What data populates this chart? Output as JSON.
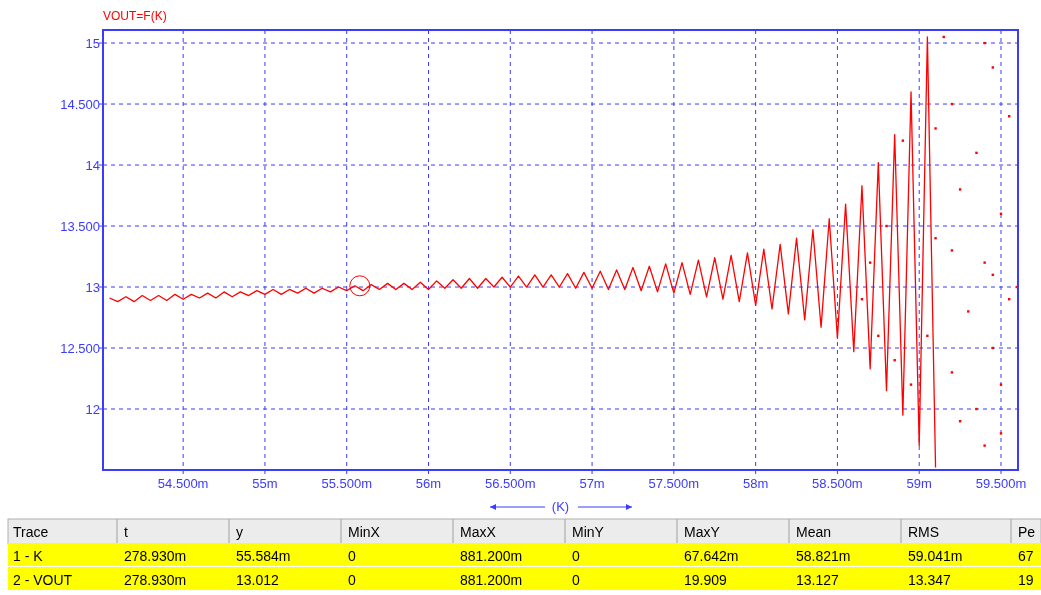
{
  "chart_data": {
    "type": "line",
    "title": "VOUT=F(K)",
    "xlabel": "(K)",
    "xlim": [
      54.01,
      59.604
    ],
    "ylim": [
      11.5,
      15.107
    ],
    "xticks": [
      {
        "value": 54.5,
        "label": "54.500m"
      },
      {
        "value": 55,
        "label": "55m"
      },
      {
        "value": 55.5,
        "label": "55.500m"
      },
      {
        "value": 56,
        "label": "56m"
      },
      {
        "value": 56.5,
        "label": "56.500m"
      },
      {
        "value": 57,
        "label": "57m"
      },
      {
        "value": 57.5,
        "label": "57.500m"
      },
      {
        "value": 58,
        "label": "58m"
      },
      {
        "value": 58.5,
        "label": "58.500m"
      },
      {
        "value": 59,
        "label": "59m"
      },
      {
        "value": 59.5,
        "label": "59.500m"
      }
    ],
    "yticks": [
      12,
      {
        "value": 12.5,
        "label": "12.500"
      },
      13,
      {
        "value": 13.5,
        "label": "13.500"
      },
      14,
      {
        "value": 14.5,
        "label": "14.500"
      },
      15
    ],
    "grid": true,
    "series": [
      {
        "color": "#ff0000",
        "marker": "none",
        "x": [
          54.05,
          54.1,
          54.15,
          54.2,
          54.25,
          54.3,
          54.35,
          54.4,
          54.45,
          54.5,
          54.55,
          54.6,
          54.65,
          54.7,
          54.75,
          54.8,
          54.85,
          54.9,
          54.95,
          55,
          55.05,
          55.1,
          55.15,
          55.2,
          55.25,
          55.3,
          55.35,
          55.4,
          55.45,
          55.5,
          55.55,
          55.6,
          55.65,
          55.7,
          55.75,
          55.8,
          55.85,
          55.9,
          55.95,
          56,
          56.05,
          56.1,
          56.15,
          56.2,
          56.25,
          56.3,
          56.35,
          56.4,
          56.45,
          56.5,
          56.55,
          56.6,
          56.65,
          56.7,
          56.75,
          56.8,
          56.85,
          56.9,
          56.95,
          57,
          57.05,
          57.1,
          57.15,
          57.2,
          57.25,
          57.3,
          57.35,
          57.4,
          57.45,
          57.5,
          57.55,
          57.6,
          57.65,
          57.7,
          57.75,
          57.8,
          57.85,
          57.9,
          57.95,
          58,
          58.05,
          58.1,
          58.15,
          58.2,
          58.25,
          58.3,
          58.35,
          58.4,
          58.45,
          58.5,
          58.55,
          58.6,
          58.65,
          58.7,
          58.75,
          58.8,
          58.85,
          58.9,
          58.95,
          59,
          59.05,
          59.1
        ],
        "values": [
          12.91,
          12.88,
          12.92,
          12.88,
          12.93,
          12.89,
          12.93,
          12.89,
          12.94,
          12.9,
          12.94,
          12.91,
          12.95,
          12.91,
          12.96,
          12.92,
          12.96,
          12.93,
          12.97,
          12.94,
          12.98,
          12.94,
          12.98,
          12.95,
          12.99,
          12.95,
          12.99,
          12.96,
          13,
          12.97,
          13.01,
          12.97,
          13.02,
          12.98,
          13.03,
          12.98,
          13.03,
          12.98,
          13.04,
          12.98,
          13.05,
          12.99,
          13.06,
          12.99,
          13.07,
          12.99,
          13.07,
          13,
          13.08,
          13,
          13.09,
          13,
          13.1,
          13,
          13.1,
          13,
          13.11,
          12.99,
          13.12,
          12.99,
          13.13,
          12.98,
          13.14,
          12.98,
          13.16,
          12.97,
          13.17,
          12.96,
          13.19,
          12.95,
          13.2,
          12.94,
          13.22,
          12.92,
          13.24,
          12.9,
          13.26,
          12.88,
          13.28,
          12.85,
          13.31,
          12.82,
          13.35,
          12.78,
          13.4,
          12.73,
          13.47,
          12.67,
          13.56,
          12.58,
          13.68,
          12.47,
          13.83,
          12.33,
          14.02,
          12.15,
          14.25,
          11.95,
          14.6,
          11.7,
          15.05,
          11.52
        ]
      },
      {
        "type": "scatter",
        "color": "#ff0000",
        "marker": "square",
        "x": [
          58.65,
          58.7,
          58.75,
          58.8,
          58.85,
          58.9,
          58.95,
          59.05,
          59.1,
          59.15,
          59.2,
          59.2,
          59.25,
          59.25,
          59.3,
          59.35,
          59.35,
          59.4,
          59.4,
          59.45,
          59.45,
          59.5,
          59.5,
          59.55,
          59.55,
          59.6,
          59.2,
          59.4,
          59.5,
          59.1,
          59.45
        ],
        "values": [
          12.9,
          13.2,
          12.6,
          13.5,
          12.4,
          14.2,
          12.2,
          12.6,
          14.3,
          15.05,
          14.5,
          12.3,
          13.8,
          11.9,
          12.8,
          14.1,
          12.0,
          13.2,
          11.7,
          14.8,
          12.5,
          13.6,
          11.8,
          14.4,
          12.9,
          13.0,
          13.3,
          15.0,
          12.2,
          13.4,
          13.1
        ]
      },
      {
        "type": "scatter",
        "color": "#ff0000",
        "marker": "circle",
        "x": [
          55.58
        ],
        "values": [
          13.01
        ]
      }
    ],
    "annotations": [
      "Trace",
      "t",
      "y",
      "MinX",
      "MaxX",
      "MinY",
      "MaxY",
      "Mean",
      "RMS",
      "Pe",
      "1 - K",
      "278.930m",
      "55.584m",
      "0",
      "881.200m",
      "0",
      "67.642m",
      "58.821m",
      "59.041m",
      "67",
      "2 - VOUT",
      "278.930m",
      "13.012",
      "0",
      "881.200m",
      "0",
      "19.909",
      "13.127",
      "13.347",
      "19"
    ]
  }
}
